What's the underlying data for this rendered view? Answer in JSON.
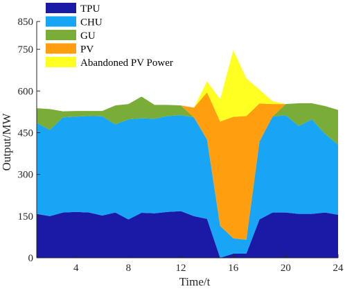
{
  "chart_data": {
    "type": "area",
    "stacked": true,
    "title": "",
    "xlabel": "Time/t",
    "ylabel": "Output/MW",
    "xlim": [
      1,
      24
    ],
    "ylim": [
      0,
      850
    ],
    "x": [
      1,
      2,
      3,
      4,
      5,
      6,
      7,
      8,
      9,
      10,
      11,
      12,
      13,
      14,
      15,
      16,
      17,
      18,
      19,
      20,
      21,
      22,
      23,
      24
    ],
    "xticks": [
      "4",
      "8",
      "12",
      "16",
      "20",
      "24"
    ],
    "xtick_values": [
      4,
      8,
      12,
      16,
      20,
      24
    ],
    "yticks": [
      "0",
      "150",
      "300",
      "450",
      "600",
      "750",
      "850"
    ],
    "ytick_values": [
      0,
      150,
      300,
      450,
      600,
      750,
      850
    ],
    "grid": false,
    "legend_position": "top-left",
    "series": [
      {
        "name": "TPU",
        "color": "#1a1aa6",
        "values": [
          158,
          150,
          163,
          165,
          163,
          152,
          163,
          138,
          162,
          160,
          165,
          168,
          150,
          140,
          0,
          15,
          15,
          138,
          163,
          163,
          158,
          158,
          163,
          155
        ]
      },
      {
        "name": "CHU",
        "color": "#18a5f6",
        "values": [
          327,
          310,
          342,
          343,
          347,
          357,
          317,
          360,
          340,
          340,
          345,
          345,
          355,
          285,
          115,
          55,
          50,
          280,
          345,
          350,
          316,
          340,
          283,
          252
        ]
      },
      {
        "name": "GU",
        "color": "#7aad38",
        "values": [
          53,
          75,
          22,
          20,
          18,
          19,
          68,
          55,
          78,
          50,
          40,
          35,
          0,
          0,
          0,
          0,
          0,
          0,
          0,
          40,
          82,
          58,
          100,
          125
        ]
      },
      {
        "name": "PV",
        "color": "#ff9f0f",
        "values": [
          0,
          0,
          0,
          0,
          0,
          0,
          0,
          0,
          0,
          0,
          0,
          0,
          35,
          170,
          375,
          437,
          445,
          137,
          45,
          0,
          0,
          0,
          0,
          0
        ]
      },
      {
        "name": "Abandoned PV Power",
        "color": "#ffff22",
        "values": [
          0,
          0,
          0,
          0,
          0,
          0,
          0,
          0,
          0,
          0,
          0,
          0,
          0,
          40,
          80,
          240,
          135,
          50,
          10,
          0,
          0,
          0,
          0,
          0
        ]
      }
    ]
  }
}
